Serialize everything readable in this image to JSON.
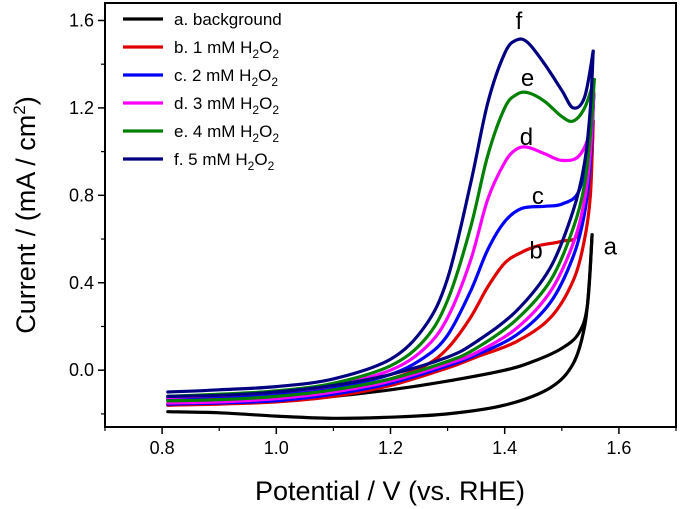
{
  "chart_data": {
    "type": "line",
    "xlabel": "Potential / V (vs. RHE)",
    "ylabel": {
      "base": "Current / (mA / cm",
      "sup": "2",
      "end": ")"
    },
    "xlim": [
      0.7,
      1.7
    ],
    "ylim": [
      -0.26,
      1.68
    ],
    "xticks": [
      0.8,
      1.0,
      1.2,
      1.4,
      1.6
    ],
    "yticks": [
      0.0,
      0.4,
      0.8,
      1.2,
      1.6
    ],
    "xtick_labels": [
      "0.8",
      "1.0",
      "1.2",
      "1.4",
      "1.6"
    ],
    "ytick_labels": [
      "0.0",
      "0.4",
      "0.8",
      "1.2",
      "1.6"
    ],
    "legend_position": "top-left",
    "series": [
      {
        "key": "a",
        "legend": {
          "prefix": "a. background",
          "sub": "",
          "suffix": ""
        },
        "color": "#000000",
        "forward": [
          [
            0.81,
            -0.16
          ],
          [
            0.9,
            -0.152
          ],
          [
            1.0,
            -0.14
          ],
          [
            1.1,
            -0.12
          ],
          [
            1.2,
            -0.09
          ],
          [
            1.3,
            -0.05
          ],
          [
            1.4,
            0.0
          ],
          [
            1.45,
            0.04
          ],
          [
            1.5,
            0.1
          ],
          [
            1.53,
            0.17
          ],
          [
            1.545,
            0.3
          ],
          [
            1.553,
            0.62
          ]
        ],
        "reverse": [
          [
            1.553,
            0.62
          ],
          [
            1.548,
            0.4
          ],
          [
            1.54,
            0.2
          ],
          [
            1.52,
            0.03
          ],
          [
            1.48,
            -0.08
          ],
          [
            1.4,
            -0.16
          ],
          [
            1.3,
            -0.2
          ],
          [
            1.2,
            -0.215
          ],
          [
            1.1,
            -0.22
          ],
          [
            1.0,
            -0.21
          ],
          [
            0.9,
            -0.195
          ],
          [
            0.81,
            -0.19
          ]
        ]
      },
      {
        "key": "b",
        "legend": {
          "prefix": "b. 1 mM H",
          "sub": "2",
          "suffix": "O"
        },
        "color": "#e00000",
        "forward": [
          [
            0.81,
            -0.135
          ],
          [
            0.9,
            -0.125
          ],
          [
            1.0,
            -0.115
          ],
          [
            1.1,
            -0.09
          ],
          [
            1.2,
            -0.04
          ],
          [
            1.26,
            0.02
          ],
          [
            1.3,
            0.1
          ],
          [
            1.34,
            0.24
          ],
          [
            1.37,
            0.38
          ],
          [
            1.4,
            0.49
          ],
          [
            1.43,
            0.54
          ],
          [
            1.46,
            0.57
          ],
          [
            1.5,
            0.59
          ],
          [
            1.53,
            0.63
          ],
          [
            1.55,
            0.9
          ],
          [
            1.555,
            1.14
          ]
        ],
        "reverse": [
          [
            1.555,
            1.14
          ],
          [
            1.55,
            0.8
          ],
          [
            1.54,
            0.6
          ],
          [
            1.52,
            0.41
          ],
          [
            1.48,
            0.24
          ],
          [
            1.42,
            0.13
          ],
          [
            1.35,
            0.06
          ],
          [
            1.3,
            0.01
          ],
          [
            1.2,
            -0.07
          ],
          [
            1.1,
            -0.12
          ],
          [
            1.0,
            -0.145
          ],
          [
            0.9,
            -0.155
          ],
          [
            0.81,
            -0.16
          ]
        ]
      },
      {
        "key": "c",
        "legend": {
          "prefix": "c. 2 mM H",
          "sub": "2",
          "suffix": "O"
        },
        "color": "#0000ff",
        "forward": [
          [
            0.81,
            -0.13
          ],
          [
            0.9,
            -0.12
          ],
          [
            1.0,
            -0.11
          ],
          [
            1.1,
            -0.08
          ],
          [
            1.2,
            -0.02
          ],
          [
            1.26,
            0.06
          ],
          [
            1.3,
            0.16
          ],
          [
            1.34,
            0.36
          ],
          [
            1.37,
            0.55
          ],
          [
            1.4,
            0.68
          ],
          [
            1.43,
            0.74
          ],
          [
            1.47,
            0.75
          ],
          [
            1.5,
            0.76
          ],
          [
            1.53,
            0.82
          ],
          [
            1.55,
            1.05
          ],
          [
            1.556,
            1.26
          ]
        ],
        "reverse": [
          [
            1.556,
            1.26
          ],
          [
            1.55,
            0.95
          ],
          [
            1.54,
            0.72
          ],
          [
            1.52,
            0.52
          ],
          [
            1.48,
            0.31
          ],
          [
            1.42,
            0.16
          ],
          [
            1.35,
            0.07
          ],
          [
            1.3,
            0.02
          ],
          [
            1.2,
            -0.06
          ],
          [
            1.1,
            -0.11
          ],
          [
            1.0,
            -0.14
          ],
          [
            0.9,
            -0.15
          ],
          [
            0.81,
            -0.155
          ]
        ]
      },
      {
        "key": "d",
        "legend": {
          "prefix": "d. 3 mM H",
          "sub": "2",
          "suffix": "O"
        },
        "color": "#ff00ff",
        "forward": [
          [
            0.81,
            -0.125
          ],
          [
            0.9,
            -0.115
          ],
          [
            1.0,
            -0.1
          ],
          [
            1.1,
            -0.07
          ],
          [
            1.2,
            0.0
          ],
          [
            1.26,
            0.1
          ],
          [
            1.3,
            0.24
          ],
          [
            1.34,
            0.5
          ],
          [
            1.37,
            0.78
          ],
          [
            1.4,
            0.95
          ],
          [
            1.42,
            1.01
          ],
          [
            1.44,
            1.02
          ],
          [
            1.47,
            0.99
          ],
          [
            1.5,
            0.96
          ],
          [
            1.53,
            0.98
          ],
          [
            1.55,
            1.1
          ],
          [
            1.556,
            1.27
          ]
        ],
        "reverse": [
          [
            1.556,
            1.27
          ],
          [
            1.55,
            1.0
          ],
          [
            1.54,
            0.78
          ],
          [
            1.52,
            0.58
          ],
          [
            1.48,
            0.36
          ],
          [
            1.42,
            0.19
          ],
          [
            1.35,
            0.08
          ],
          [
            1.3,
            0.03
          ],
          [
            1.2,
            -0.05
          ],
          [
            1.1,
            -0.1
          ],
          [
            1.0,
            -0.13
          ],
          [
            0.9,
            -0.145
          ],
          [
            0.81,
            -0.15
          ]
        ]
      },
      {
        "key": "e",
        "legend": {
          "prefix": "e. 4 mM H",
          "sub": "2",
          "suffix": "O"
        },
        "color": "#008000",
        "forward": [
          [
            0.81,
            -0.12
          ],
          [
            0.9,
            -0.11
          ],
          [
            1.0,
            -0.095
          ],
          [
            1.1,
            -0.06
          ],
          [
            1.2,
            0.02
          ],
          [
            1.26,
            0.14
          ],
          [
            1.3,
            0.32
          ],
          [
            1.34,
            0.65
          ],
          [
            1.37,
            0.98
          ],
          [
            1.4,
            1.2
          ],
          [
            1.42,
            1.26
          ],
          [
            1.44,
            1.27
          ],
          [
            1.47,
            1.23
          ],
          [
            1.5,
            1.16
          ],
          [
            1.52,
            1.14
          ],
          [
            1.54,
            1.2
          ],
          [
            1.557,
            1.33
          ]
        ],
        "reverse": [
          [
            1.557,
            1.33
          ],
          [
            1.55,
            1.08
          ],
          [
            1.54,
            0.85
          ],
          [
            1.52,
            0.65
          ],
          [
            1.48,
            0.41
          ],
          [
            1.42,
            0.23
          ],
          [
            1.35,
            0.1
          ],
          [
            1.3,
            0.04
          ],
          [
            1.2,
            -0.04
          ],
          [
            1.1,
            -0.09
          ],
          [
            1.0,
            -0.12
          ],
          [
            0.9,
            -0.135
          ],
          [
            0.81,
            -0.14
          ]
        ]
      },
      {
        "key": "f",
        "legend": {
          "prefix": "f.  5 mM H",
          "sub": "2",
          "suffix": "O"
        },
        "color": "#000080",
        "forward": [
          [
            0.81,
            -0.1
          ],
          [
            0.9,
            -0.09
          ],
          [
            1.0,
            -0.075
          ],
          [
            1.1,
            -0.04
          ],
          [
            1.2,
            0.05
          ],
          [
            1.26,
            0.2
          ],
          [
            1.3,
            0.42
          ],
          [
            1.34,
            0.85
          ],
          [
            1.37,
            1.22
          ],
          [
            1.4,
            1.45
          ],
          [
            1.42,
            1.51
          ],
          [
            1.44,
            1.5
          ],
          [
            1.47,
            1.4
          ],
          [
            1.5,
            1.28
          ],
          [
            1.52,
            1.2
          ],
          [
            1.54,
            1.25
          ],
          [
            1.555,
            1.46
          ]
        ],
        "reverse": [
          [
            1.555,
            1.46
          ],
          [
            1.55,
            1.2
          ],
          [
            1.54,
            0.95
          ],
          [
            1.52,
            0.73
          ],
          [
            1.48,
            0.47
          ],
          [
            1.42,
            0.27
          ],
          [
            1.35,
            0.13
          ],
          [
            1.3,
            0.06
          ],
          [
            1.2,
            -0.02
          ],
          [
            1.1,
            -0.07
          ],
          [
            1.0,
            -0.1
          ],
          [
            0.9,
            -0.115
          ],
          [
            0.81,
            -0.12
          ]
        ]
      }
    ],
    "curve_labels": [
      {
        "text": "a",
        "x": 1.585,
        "y": 0.53
      },
      {
        "text": "b",
        "x": 1.455,
        "y": 0.51
      },
      {
        "text": "c",
        "x": 1.458,
        "y": 0.76
      },
      {
        "text": "d",
        "x": 1.438,
        "y": 1.03
      },
      {
        "text": "e",
        "x": 1.44,
        "y": 1.3
      },
      {
        "text": "f",
        "x": 1.425,
        "y": 1.56
      }
    ]
  }
}
